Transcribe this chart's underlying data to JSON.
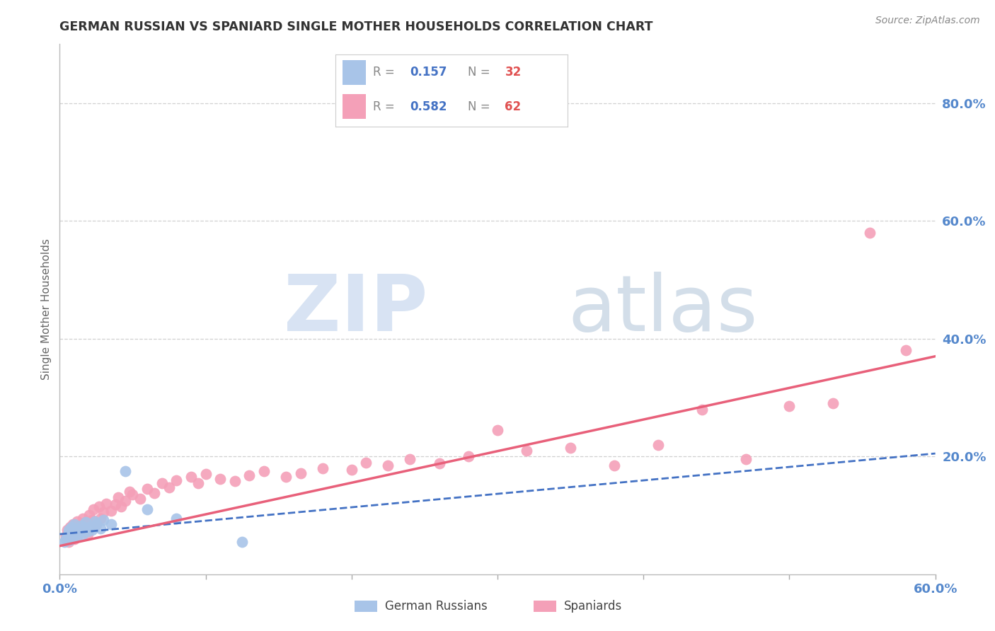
{
  "title": "GERMAN RUSSIAN VS SPANIARD SINGLE MOTHER HOUSEHOLDS CORRELATION CHART",
  "source": "Source: ZipAtlas.com",
  "ylabel": "Single Mother Households",
  "xlim": [
    0.0,
    0.6
  ],
  "ylim": [
    0.0,
    0.9
  ],
  "blue_color": "#a8c4e8",
  "pink_color": "#f4a0b8",
  "blue_line_color": "#4472c4",
  "pink_line_color": "#e8607a",
  "grid_color": "#d0d0d0",
  "tick_label_color": "#5588cc",
  "german_russian_x": [
    0.003,
    0.004,
    0.005,
    0.006,
    0.006,
    0.007,
    0.007,
    0.008,
    0.008,
    0.009,
    0.01,
    0.01,
    0.011,
    0.012,
    0.013,
    0.014,
    0.015,
    0.016,
    0.017,
    0.018,
    0.019,
    0.02,
    0.022,
    0.024,
    0.025,
    0.028,
    0.03,
    0.035,
    0.045,
    0.06,
    0.08,
    0.125
  ],
  "german_russian_y": [
    0.055,
    0.06,
    0.065,
    0.07,
    0.075,
    0.058,
    0.072,
    0.068,
    0.08,
    0.063,
    0.075,
    0.085,
    0.07,
    0.065,
    0.078,
    0.072,
    0.082,
    0.068,
    0.076,
    0.088,
    0.073,
    0.08,
    0.075,
    0.09,
    0.085,
    0.078,
    0.092,
    0.085,
    0.175,
    0.11,
    0.095,
    0.055
  ],
  "spaniard_x": [
    0.004,
    0.005,
    0.006,
    0.007,
    0.008,
    0.009,
    0.01,
    0.012,
    0.013,
    0.015,
    0.016,
    0.017,
    0.018,
    0.019,
    0.02,
    0.022,
    0.023,
    0.025,
    0.027,
    0.028,
    0.03,
    0.032,
    0.035,
    0.038,
    0.04,
    0.042,
    0.045,
    0.048,
    0.05,
    0.055,
    0.06,
    0.065,
    0.07,
    0.075,
    0.08,
    0.09,
    0.095,
    0.1,
    0.11,
    0.12,
    0.13,
    0.14,
    0.155,
    0.165,
    0.18,
    0.2,
    0.21,
    0.225,
    0.24,
    0.26,
    0.28,
    0.3,
    0.32,
    0.35,
    0.38,
    0.41,
    0.44,
    0.47,
    0.5,
    0.53,
    0.555,
    0.58
  ],
  "spaniard_y": [
    0.065,
    0.075,
    0.055,
    0.08,
    0.07,
    0.085,
    0.06,
    0.09,
    0.078,
    0.072,
    0.095,
    0.082,
    0.088,
    0.068,
    0.1,
    0.092,
    0.11,
    0.085,
    0.115,
    0.095,
    0.105,
    0.12,
    0.108,
    0.118,
    0.13,
    0.115,
    0.125,
    0.14,
    0.135,
    0.128,
    0.145,
    0.138,
    0.155,
    0.148,
    0.16,
    0.165,
    0.155,
    0.17,
    0.162,
    0.158,
    0.168,
    0.175,
    0.165,
    0.172,
    0.18,
    0.178,
    0.19,
    0.185,
    0.195,
    0.188,
    0.2,
    0.245,
    0.21,
    0.215,
    0.185,
    0.22,
    0.28,
    0.195,
    0.285,
    0.29,
    0.58,
    0.38
  ],
  "gr_line_x": [
    0.0,
    0.6
  ],
  "gr_line_y_start": 0.068,
  "gr_line_y_end": 0.205,
  "sp_line_x": [
    0.0,
    0.6
  ],
  "sp_line_y_start": 0.048,
  "sp_line_y_end": 0.37
}
